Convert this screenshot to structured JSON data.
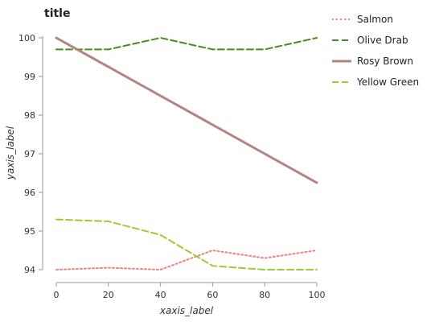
{
  "chart_data": {
    "type": "line",
    "title": "title",
    "xlabel": "xaxis_label",
    "ylabel": "yaxis_label",
    "x": [
      0,
      20,
      40,
      60,
      80,
      100
    ],
    "xlim": [
      0,
      100
    ],
    "ylim": [
      94,
      100
    ],
    "x_ticks": [
      "0",
      "20",
      "40",
      "60",
      "80",
      "100"
    ],
    "y_ticks": [
      "94",
      "95",
      "96",
      "97",
      "98",
      "99",
      "100"
    ],
    "grid": false,
    "legend_position": "right",
    "series": [
      {
        "name": "Salmon",
        "color": "#f08080",
        "style": "dotted",
        "values": [
          94.0,
          94.05,
          94.0,
          94.5,
          94.3,
          94.5
        ]
      },
      {
        "name": "Olive Drab",
        "color": "#4a8a22",
        "style": "dashed",
        "values": [
          99.7,
          99.7,
          100.0,
          99.7,
          99.7,
          100.0
        ]
      },
      {
        "name": "Rosy Brown",
        "color": "#b4837f",
        "style": "solid",
        "values": [
          100.0,
          99.25,
          98.5,
          97.75,
          97.0,
          96.25
        ]
      },
      {
        "name": "Yellow Green",
        "color": "#9acd32",
        "style": "dashed",
        "values": [
          95.3,
          95.25,
          94.9,
          94.1,
          94.0,
          94.0
        ]
      }
    ]
  }
}
